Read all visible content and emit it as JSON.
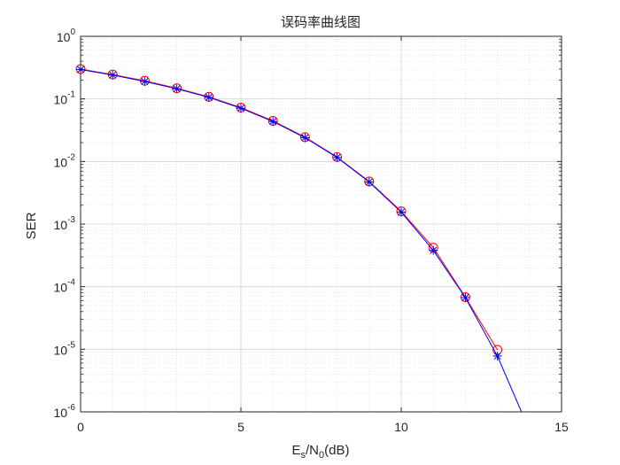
{
  "chart_data": {
    "type": "line",
    "title": "误码率曲线图",
    "xlabel": {
      "main": "E",
      "sub1": "s",
      "mid": "/N",
      "sub2": "0",
      "tail": "(dB)"
    },
    "ylabel": "SER",
    "xlim": [
      0,
      15
    ],
    "ylim": [
      1e-06,
      1
    ],
    "yscale": "log",
    "grid": true,
    "minor_grid": true,
    "x_ticks": [
      "0",
      "5",
      "10",
      "15"
    ],
    "y_ticks": [
      {
        "base": "10",
        "exp": "0"
      },
      {
        "base": "10",
        "exp": "-1"
      },
      {
        "base": "10",
        "exp": "-2"
      },
      {
        "base": "10",
        "exp": "-3"
      },
      {
        "base": "10",
        "exp": "-4"
      },
      {
        "base": "10",
        "exp": "-5"
      },
      {
        "base": "10",
        "exp": "-6"
      }
    ],
    "series": [
      {
        "marker": "circle",
        "color": "#ff0000",
        "x": [
          0,
          1,
          2,
          3,
          4,
          5,
          6,
          7,
          8,
          9,
          10,
          11,
          12,
          13
        ],
        "values": [
          0.3,
          0.245,
          0.195,
          0.148,
          0.108,
          0.0725,
          0.0445,
          0.0245,
          0.0118,
          0.0048,
          0.0016,
          0.00042,
          6.8e-05,
          9.8e-06
        ]
      },
      {
        "marker": "asterisk",
        "color": "#0000ff",
        "x": [
          0,
          1,
          2,
          3,
          4,
          5,
          6,
          7,
          8,
          9,
          10,
          11,
          12,
          13,
          13.75
        ],
        "values": [
          0.295,
          0.24,
          0.19,
          0.145,
          0.106,
          0.071,
          0.0435,
          0.024,
          0.0116,
          0.0047,
          0.00155,
          0.00038,
          6.7e-05,
          7.8e-06,
          1e-06
        ],
        "marker_points": 14
      }
    ]
  }
}
